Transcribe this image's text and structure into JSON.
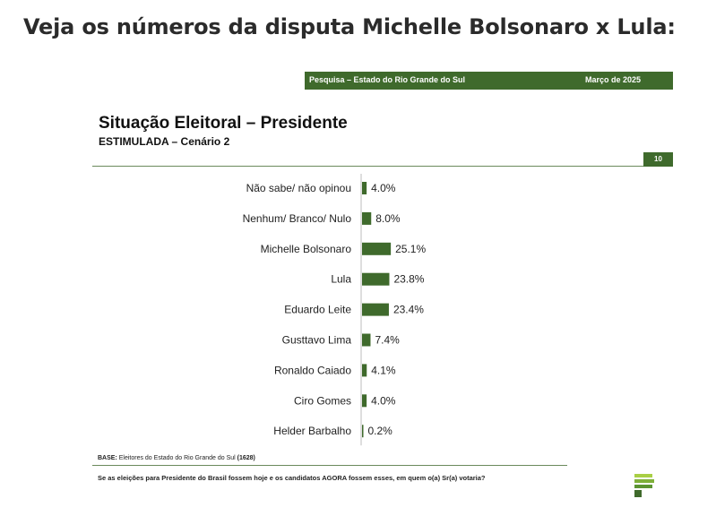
{
  "headline": "Veja os números da disputa Michelle Bolsonaro x Lula:",
  "slide": {
    "header_left": "Pesquisa – Estado do Rio Grande do Sul",
    "header_right": "Março de 2025",
    "title": "Situação Eleitoral – Presidente",
    "subtitle": "ESTIMULADA – Cenário 2",
    "page_number": "10",
    "base_label": "BASE:",
    "base_text": "Eleitores do Estado do Rio Grande do Sul",
    "base_count": "(1628)",
    "question": "Se as eleições para Presidente do Brasil fossem hoje e os candidatos AGORA fossem esses, em quem o(a) Sr(a) votaria?"
  },
  "colors": {
    "bar": "#3f6a2c",
    "header": "#3f6a2c",
    "logo_light": "#a9cf45",
    "logo_dark": "#3f6a2c"
  },
  "chart_data": {
    "type": "bar",
    "orientation": "horizontal",
    "categories": [
      "Não sabe/ não opinou",
      "Nenhum/ Branco/ Nulo",
      "Michelle Bolsonaro",
      "Lula",
      "Eduardo Leite",
      "Gusttavo Lima",
      "Ronaldo Caiado",
      "Ciro Gomes",
      "Helder Barbalho"
    ],
    "values": [
      4.0,
      8.0,
      25.1,
      23.8,
      23.4,
      7.4,
      4.1,
      4.0,
      0.2
    ],
    "value_labels": [
      "4.0%",
      "8.0%",
      "25.1%",
      "23.8%",
      "23.4%",
      "7.4%",
      "4.1%",
      "4.0%",
      "0.2%"
    ],
    "unit": "%",
    "xlim": [
      0,
      100
    ],
    "grid": false,
    "legend": "none"
  }
}
